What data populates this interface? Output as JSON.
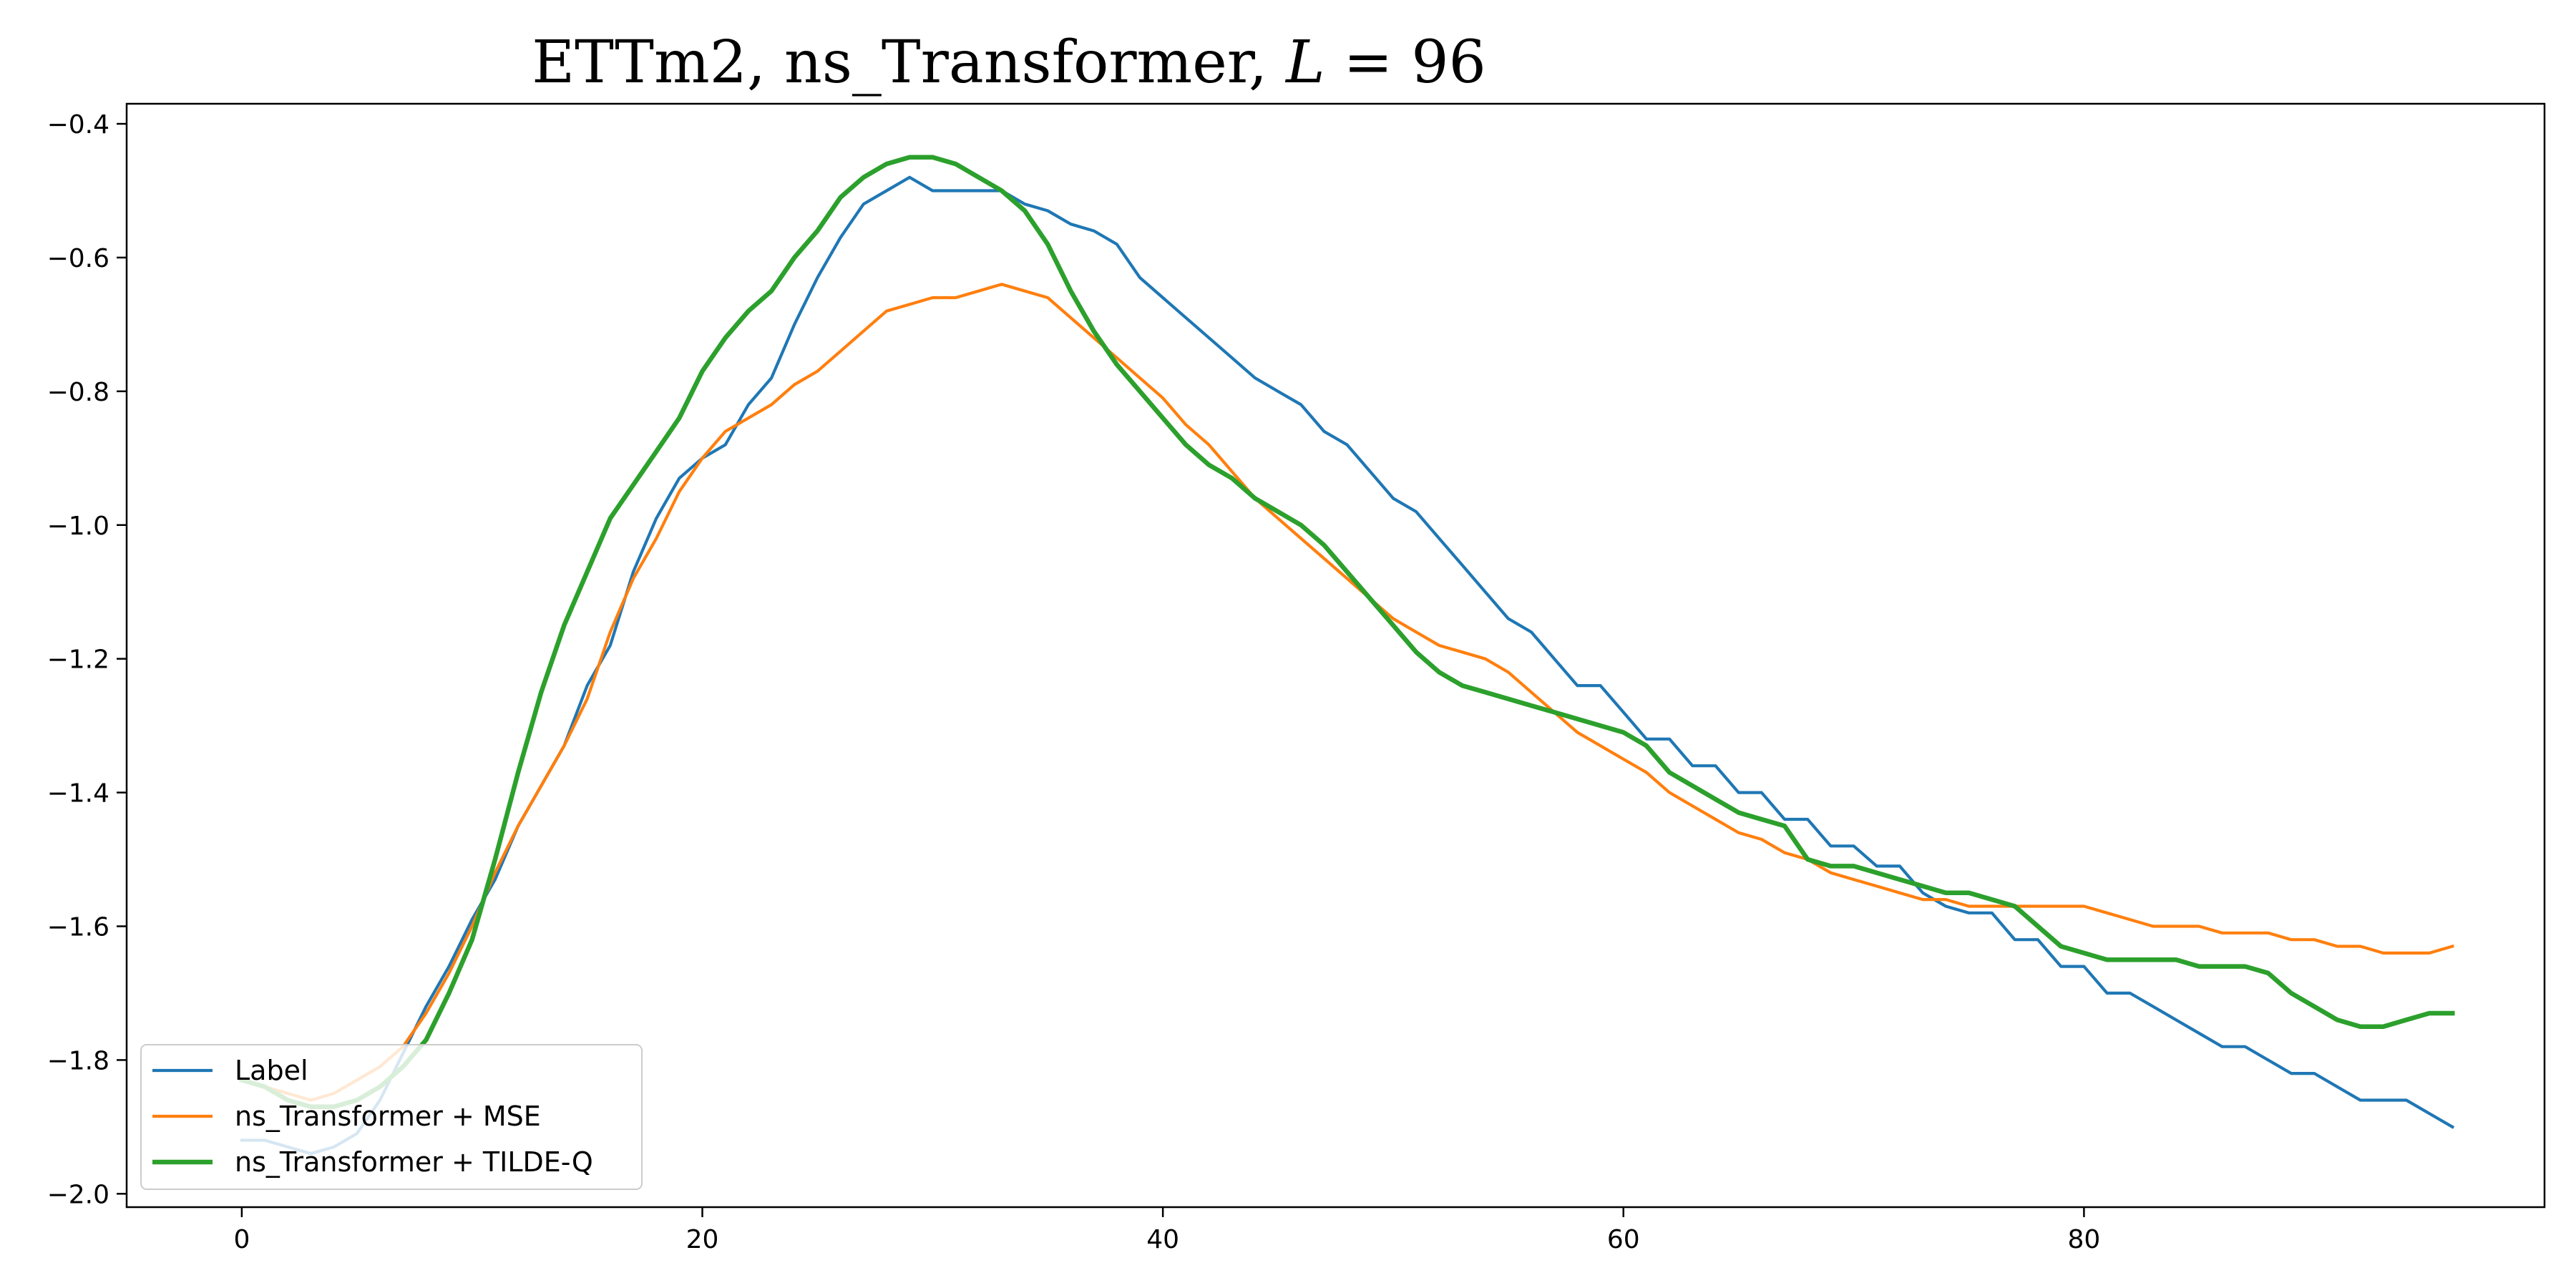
{
  "chart_data": {
    "type": "line",
    "title": "ETTm2, ns_Transformer, L = 96",
    "title_parts": {
      "prefix": "ETTm2, ns_Transformer, ",
      "italic_var": "L",
      "suffix": " = 96"
    },
    "xlabel": "",
    "ylabel": "",
    "xlim": [
      -5,
      100
    ],
    "ylim": [
      -2.02,
      -0.37
    ],
    "xticks": [
      0,
      20,
      40,
      60,
      80
    ],
    "yticks": [
      -2.0,
      -1.8,
      -1.6,
      -1.4,
      -1.2,
      -1.0,
      -0.8,
      -0.6,
      -0.4
    ],
    "ytick_labels": [
      "−2.0",
      "−1.8",
      "−1.6",
      "−1.4",
      "−1.2",
      "−1.0",
      "−0.8",
      "−0.6",
      "−0.4"
    ],
    "grid": false,
    "legend_position": "lower-left",
    "series": [
      {
        "name": "Label",
        "color": "#1f77b4",
        "points": [
          [
            0,
            -1.92
          ],
          [
            1,
            -1.92
          ],
          [
            2,
            -1.93
          ],
          [
            3,
            -1.94
          ],
          [
            4,
            -1.93
          ],
          [
            5,
            -1.91
          ],
          [
            6,
            -1.86
          ],
          [
            7,
            -1.79
          ],
          [
            8,
            -1.72
          ],
          [
            9,
            -1.66
          ],
          [
            10,
            -1.59
          ],
          [
            11,
            -1.53
          ],
          [
            12,
            -1.45
          ],
          [
            13,
            -1.39
          ],
          [
            14,
            -1.33
          ],
          [
            15,
            -1.24
          ],
          [
            16,
            -1.18
          ],
          [
            17,
            -1.07
          ],
          [
            18,
            -0.99
          ],
          [
            19,
            -0.93
          ],
          [
            20,
            -0.9
          ],
          [
            21,
            -0.88
          ],
          [
            22,
            -0.82
          ],
          [
            23,
            -0.78
          ],
          [
            24,
            -0.7
          ],
          [
            25,
            -0.63
          ],
          [
            26,
            -0.57
          ],
          [
            27,
            -0.52
          ],
          [
            28,
            -0.5
          ],
          [
            29,
            -0.48
          ],
          [
            30,
            -0.5
          ],
          [
            31,
            -0.5
          ],
          [
            32,
            -0.5
          ],
          [
            33,
            -0.5
          ],
          [
            34,
            -0.52
          ],
          [
            35,
            -0.53
          ],
          [
            36,
            -0.55
          ],
          [
            37,
            -0.56
          ],
          [
            38,
            -0.58
          ],
          [
            39,
            -0.63
          ],
          [
            40,
            -0.66
          ],
          [
            41,
            -0.69
          ],
          [
            42,
            -0.72
          ],
          [
            43,
            -0.75
          ],
          [
            44,
            -0.78
          ],
          [
            45,
            -0.8
          ],
          [
            46,
            -0.82
          ],
          [
            47,
            -0.86
          ],
          [
            48,
            -0.88
          ],
          [
            49,
            -0.92
          ],
          [
            50,
            -0.96
          ],
          [
            51,
            -0.98
          ],
          [
            52,
            -1.02
          ],
          [
            53,
            -1.06
          ],
          [
            54,
            -1.1
          ],
          [
            55,
            -1.14
          ],
          [
            56,
            -1.16
          ],
          [
            57,
            -1.2
          ],
          [
            58,
            -1.24
          ],
          [
            59,
            -1.24
          ],
          [
            60,
            -1.28
          ],
          [
            61,
            -1.32
          ],
          [
            62,
            -1.32
          ],
          [
            63,
            -1.36
          ],
          [
            64,
            -1.36
          ],
          [
            65,
            -1.4
          ],
          [
            66,
            -1.4
          ],
          [
            67,
            -1.44
          ],
          [
            68,
            -1.44
          ],
          [
            69,
            -1.48
          ],
          [
            70,
            -1.48
          ],
          [
            71,
            -1.51
          ],
          [
            72,
            -1.51
          ],
          [
            73,
            -1.55
          ],
          [
            74,
            -1.57
          ],
          [
            75,
            -1.58
          ],
          [
            76,
            -1.58
          ],
          [
            77,
            -1.62
          ],
          [
            78,
            -1.62
          ],
          [
            79,
            -1.66
          ],
          [
            80,
            -1.66
          ],
          [
            81,
            -1.7
          ],
          [
            82,
            -1.7
          ],
          [
            83,
            -1.72
          ],
          [
            84,
            -1.74
          ],
          [
            85,
            -1.76
          ],
          [
            86,
            -1.78
          ],
          [
            87,
            -1.78
          ],
          [
            88,
            -1.8
          ],
          [
            89,
            -1.82
          ],
          [
            90,
            -1.82
          ],
          [
            91,
            -1.84
          ],
          [
            92,
            -1.86
          ],
          [
            93,
            -1.86
          ],
          [
            94,
            -1.86
          ],
          [
            95,
            -1.88
          ],
          [
            96,
            -1.9
          ]
        ]
      },
      {
        "name": "ns_Transformer + MSE",
        "color": "#ff7f0e",
        "points": [
          [
            0,
            -1.83
          ],
          [
            1,
            -1.84
          ],
          [
            2,
            -1.85
          ],
          [
            3,
            -1.86
          ],
          [
            4,
            -1.85
          ],
          [
            5,
            -1.83
          ],
          [
            6,
            -1.81
          ],
          [
            7,
            -1.78
          ],
          [
            8,
            -1.73
          ],
          [
            9,
            -1.67
          ],
          [
            10,
            -1.6
          ],
          [
            11,
            -1.52
          ],
          [
            12,
            -1.45
          ],
          [
            13,
            -1.39
          ],
          [
            14,
            -1.33
          ],
          [
            15,
            -1.26
          ],
          [
            16,
            -1.16
          ],
          [
            17,
            -1.08
          ],
          [
            18,
            -1.02
          ],
          [
            19,
            -0.95
          ],
          [
            20,
            -0.9
          ],
          [
            21,
            -0.86
          ],
          [
            22,
            -0.84
          ],
          [
            23,
            -0.82
          ],
          [
            24,
            -0.79
          ],
          [
            25,
            -0.77
          ],
          [
            26,
            -0.74
          ],
          [
            27,
            -0.71
          ],
          [
            28,
            -0.68
          ],
          [
            29,
            -0.67
          ],
          [
            30,
            -0.66
          ],
          [
            31,
            -0.66
          ],
          [
            32,
            -0.65
          ],
          [
            33,
            -0.64
          ],
          [
            34,
            -0.65
          ],
          [
            35,
            -0.66
          ],
          [
            36,
            -0.69
          ],
          [
            37,
            -0.72
          ],
          [
            38,
            -0.75
          ],
          [
            39,
            -0.78
          ],
          [
            40,
            -0.81
          ],
          [
            41,
            -0.85
          ],
          [
            42,
            -0.88
          ],
          [
            43,
            -0.92
          ],
          [
            44,
            -0.96
          ],
          [
            45,
            -0.99
          ],
          [
            46,
            -1.02
          ],
          [
            47,
            -1.05
          ],
          [
            48,
            -1.08
          ],
          [
            49,
            -1.11
          ],
          [
            50,
            -1.14
          ],
          [
            51,
            -1.16
          ],
          [
            52,
            -1.18
          ],
          [
            53,
            -1.19
          ],
          [
            54,
            -1.2
          ],
          [
            55,
            -1.22
          ],
          [
            56,
            -1.25
          ],
          [
            57,
            -1.28
          ],
          [
            58,
            -1.31
          ],
          [
            59,
            -1.33
          ],
          [
            60,
            -1.35
          ],
          [
            61,
            -1.37
          ],
          [
            62,
            -1.4
          ],
          [
            63,
            -1.42
          ],
          [
            64,
            -1.44
          ],
          [
            65,
            -1.46
          ],
          [
            66,
            -1.47
          ],
          [
            67,
            -1.49
          ],
          [
            68,
            -1.5
          ],
          [
            69,
            -1.52
          ],
          [
            70,
            -1.53
          ],
          [
            71,
            -1.54
          ],
          [
            72,
            -1.55
          ],
          [
            73,
            -1.56
          ],
          [
            74,
            -1.56
          ],
          [
            75,
            -1.57
          ],
          [
            76,
            -1.57
          ],
          [
            77,
            -1.57
          ],
          [
            78,
            -1.57
          ],
          [
            79,
            -1.57
          ],
          [
            80,
            -1.57
          ],
          [
            81,
            -1.58
          ],
          [
            82,
            -1.59
          ],
          [
            83,
            -1.6
          ],
          [
            84,
            -1.6
          ],
          [
            85,
            -1.6
          ],
          [
            86,
            -1.61
          ],
          [
            87,
            -1.61
          ],
          [
            88,
            -1.61
          ],
          [
            89,
            -1.62
          ],
          [
            90,
            -1.62
          ],
          [
            91,
            -1.63
          ],
          [
            92,
            -1.63
          ],
          [
            93,
            -1.64
          ],
          [
            94,
            -1.64
          ],
          [
            95,
            -1.64
          ],
          [
            96,
            -1.63
          ]
        ]
      },
      {
        "name": "ns_Transformer + TILDE-Q",
        "color": "#2ca02c",
        "points": [
          [
            0,
            -1.83
          ],
          [
            1,
            -1.84
          ],
          [
            2,
            -1.86
          ],
          [
            3,
            -1.87
          ],
          [
            4,
            -1.87
          ],
          [
            5,
            -1.86
          ],
          [
            6,
            -1.84
          ],
          [
            7,
            -1.81
          ],
          [
            8,
            -1.77
          ],
          [
            9,
            -1.7
          ],
          [
            10,
            -1.62
          ],
          [
            11,
            -1.5
          ],
          [
            12,
            -1.37
          ],
          [
            13,
            -1.25
          ],
          [
            14,
            -1.15
          ],
          [
            15,
            -1.07
          ],
          [
            16,
            -0.99
          ],
          [
            17,
            -0.94
          ],
          [
            18,
            -0.89
          ],
          [
            19,
            -0.84
          ],
          [
            20,
            -0.77
          ],
          [
            21,
            -0.72
          ],
          [
            22,
            -0.68
          ],
          [
            23,
            -0.65
          ],
          [
            24,
            -0.6
          ],
          [
            25,
            -0.56
          ],
          [
            26,
            -0.51
          ],
          [
            27,
            -0.48
          ],
          [
            28,
            -0.46
          ],
          [
            29,
            -0.45
          ],
          [
            30,
            -0.45
          ],
          [
            31,
            -0.46
          ],
          [
            32,
            -0.48
          ],
          [
            33,
            -0.5
          ],
          [
            34,
            -0.53
          ],
          [
            35,
            -0.58
          ],
          [
            36,
            -0.65
          ],
          [
            37,
            -0.71
          ],
          [
            38,
            -0.76
          ],
          [
            39,
            -0.8
          ],
          [
            40,
            -0.84
          ],
          [
            41,
            -0.88
          ],
          [
            42,
            -0.91
          ],
          [
            43,
            -0.93
          ],
          [
            44,
            -0.96
          ],
          [
            45,
            -0.98
          ],
          [
            46,
            -1.0
          ],
          [
            47,
            -1.03
          ],
          [
            48,
            -1.07
          ],
          [
            49,
            -1.11
          ],
          [
            50,
            -1.15
          ],
          [
            51,
            -1.19
          ],
          [
            52,
            -1.22
          ],
          [
            53,
            -1.24
          ],
          [
            54,
            -1.25
          ],
          [
            55,
            -1.26
          ],
          [
            56,
            -1.27
          ],
          [
            57,
            -1.28
          ],
          [
            58,
            -1.29
          ],
          [
            59,
            -1.3
          ],
          [
            60,
            -1.31
          ],
          [
            61,
            -1.33
          ],
          [
            62,
            -1.37
          ],
          [
            63,
            -1.39
          ],
          [
            64,
            -1.41
          ],
          [
            65,
            -1.43
          ],
          [
            66,
            -1.44
          ],
          [
            67,
            -1.45
          ],
          [
            68,
            -1.5
          ],
          [
            69,
            -1.51
          ],
          [
            70,
            -1.51
          ],
          [
            71,
            -1.52
          ],
          [
            72,
            -1.53
          ],
          [
            73,
            -1.54
          ],
          [
            74,
            -1.55
          ],
          [
            75,
            -1.55
          ],
          [
            76,
            -1.56
          ],
          [
            77,
            -1.57
          ],
          [
            78,
            -1.6
          ],
          [
            79,
            -1.63
          ],
          [
            80,
            -1.64
          ],
          [
            81,
            -1.65
          ],
          [
            82,
            -1.65
          ],
          [
            83,
            -1.65
          ],
          [
            84,
            -1.65
          ],
          [
            85,
            -1.66
          ],
          [
            86,
            -1.66
          ],
          [
            87,
            -1.66
          ],
          [
            88,
            -1.67
          ],
          [
            89,
            -1.7
          ],
          [
            90,
            -1.72
          ],
          [
            91,
            -1.74
          ],
          [
            92,
            -1.75
          ],
          [
            93,
            -1.75
          ],
          [
            94,
            -1.74
          ],
          [
            95,
            -1.73
          ],
          [
            96,
            -1.73
          ]
        ]
      }
    ]
  }
}
